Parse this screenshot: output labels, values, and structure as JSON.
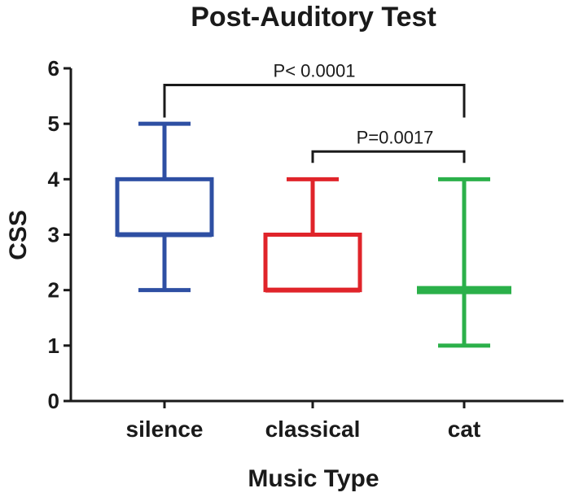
{
  "chart_data": {
    "type": "box",
    "title": "Post-Auditory Test",
    "xlabel": "Music Type",
    "ylabel": "CSS",
    "ylim": [
      0,
      6
    ],
    "yticks": [
      "0",
      "1",
      "2",
      "3",
      "4",
      "5",
      "6"
    ],
    "categories": [
      "silence",
      "classical",
      "cat"
    ],
    "boxes": [
      {
        "category": "silence",
        "min": 2,
        "q1": 3,
        "median": 3,
        "q3": 4,
        "max": 5,
        "color": "#2e4fa3"
      },
      {
        "category": "classical",
        "min": 2,
        "q1": 2,
        "median": 2,
        "q3": 3,
        "max": 4,
        "color": "#e0242a"
      },
      {
        "category": "cat",
        "min": 1,
        "q1": 2,
        "median": 2,
        "q3": 2,
        "max": 4,
        "color": "#2bb04a"
      }
    ],
    "significance": [
      {
        "from": "silence",
        "to": "cat",
        "label": "P< 0.0001",
        "level": 5.7
      },
      {
        "from": "classical",
        "to": "cat",
        "label": "P=0.0017",
        "level": 4.5
      }
    ],
    "grid": false,
    "legend": "none"
  }
}
